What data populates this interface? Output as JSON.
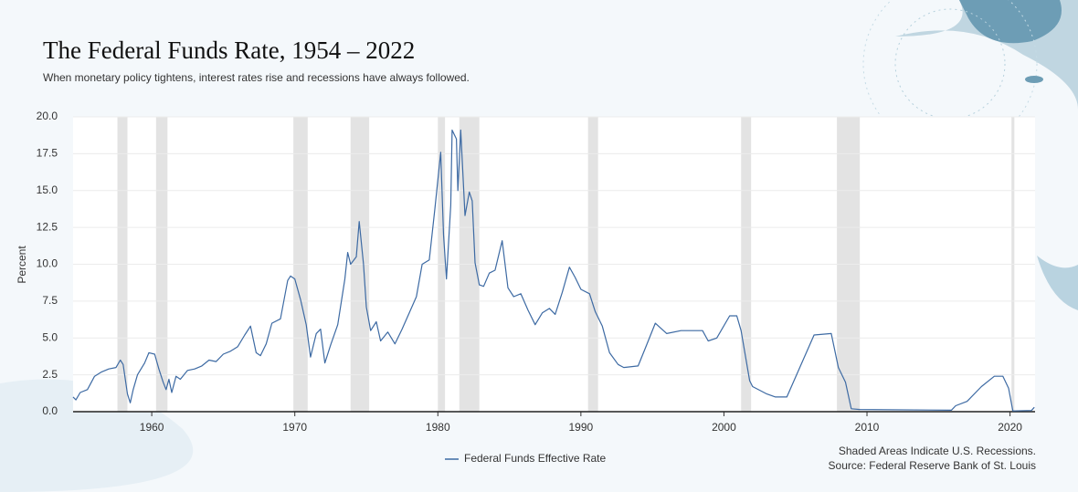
{
  "chart_data": {
    "type": "line",
    "title": "The Federal Funds Rate, 1954 – 2022",
    "subtitle": "When monetary policy tightens, interest rates rise and recessions have always followed.",
    "ylabel": "Percent",
    "xlim": [
      1954.5,
      2021.75
    ],
    "xticks": [
      1960,
      1970,
      1980,
      1990,
      2000,
      2010,
      2020
    ],
    "ylim": [
      0,
      20
    ],
    "yticks": [
      {
        "value": 0,
        "label": "0.0"
      },
      {
        "value": 2.5,
        "label": "2.5"
      },
      {
        "value": 5,
        "label": "5.0"
      },
      {
        "value": 7.5,
        "label": "7.5"
      },
      {
        "value": 10,
        "label": "10.0"
      },
      {
        "value": 12.5,
        "label": "12.5"
      },
      {
        "value": 15,
        "label": "15.0"
      },
      {
        "value": 17.5,
        "label": "17.5"
      },
      {
        "value": 20,
        "label": "20.0"
      }
    ],
    "grid": true,
    "recessions": [
      [
        1957.6,
        1958.3
      ],
      [
        1960.3,
        1961.1
      ],
      [
        1969.9,
        1970.9
      ],
      [
        1973.9,
        1975.2
      ],
      [
        1980.0,
        1980.5
      ],
      [
        1981.5,
        1982.9
      ],
      [
        1990.5,
        1991.2
      ],
      [
        2001.2,
        2001.9
      ],
      [
        2007.9,
        2009.5
      ],
      [
        2020.1,
        2020.3
      ]
    ],
    "recession_color": "#e3e3e3",
    "series": [
      {
        "name": "Federal Funds Effective Rate",
        "color": "#3d6aa3",
        "x": [
          1954.5,
          1954.7,
          1955.0,
          1955.5,
          1956.0,
          1956.5,
          1957.0,
          1957.5,
          1957.8,
          1958.0,
          1958.3,
          1958.5,
          1958.7,
          1959.0,
          1959.5,
          1959.8,
          1960.2,
          1960.5,
          1960.8,
          1961.0,
          1961.2,
          1961.4,
          1961.7,
          1962.0,
          1962.5,
          1963.0,
          1963.5,
          1964.0,
          1964.5,
          1965.0,
          1965.5,
          1966.0,
          1966.5,
          1966.9,
          1967.3,
          1967.6,
          1968.0,
          1968.4,
          1969.0,
          1969.5,
          1969.7,
          1970.0,
          1970.4,
          1970.8,
          1971.1,
          1971.5,
          1971.8,
          1972.1,
          1972.5,
          1973.0,
          1973.5,
          1973.7,
          1973.9,
          1974.3,
          1974.5,
          1974.8,
          1975.0,
          1975.3,
          1975.7,
          1976.0,
          1976.5,
          1977.0,
          1977.5,
          1978.0,
          1978.5,
          1978.9,
          1979.4,
          1979.8,
          1980.2,
          1980.4,
          1980.6,
          1980.9,
          1981.0,
          1981.3,
          1981.4,
          1981.6,
          1981.9,
          1982.2,
          1982.4,
          1982.6,
          1982.9,
          1983.2,
          1983.6,
          1984.0,
          1984.5,
          1984.9,
          1985.3,
          1985.8,
          1986.3,
          1986.8,
          1987.3,
          1987.8,
          1988.2,
          1988.7,
          1989.2,
          1989.6,
          1990.0,
          1990.6,
          1991.0,
          1991.5,
          1992.0,
          1992.6,
          1993.0,
          1994.0,
          1994.5,
          1995.2,
          1996.0,
          1997.0,
          1998.5,
          1998.9,
          1999.5,
          2000.4,
          2000.9,
          2001.2,
          2001.8,
          2002.0,
          2003.0,
          2003.6,
          2004.4,
          2006.3,
          2007.5,
          2008.0,
          2008.5,
          2008.9,
          2009.5,
          2015.9,
          2016.2,
          2017.0,
          2018.0,
          2018.9,
          2019.5,
          2019.9,
          2020.2,
          2021.5,
          2021.7
        ],
        "values": [
          1.0,
          0.8,
          1.3,
          1.5,
          2.4,
          2.7,
          2.9,
          3.0,
          3.5,
          3.2,
          1.2,
          0.6,
          1.5,
          2.5,
          3.3,
          4.0,
          3.9,
          2.9,
          2.0,
          1.5,
          2.2,
          1.3,
          2.4,
          2.2,
          2.8,
          2.9,
          3.1,
          3.5,
          3.4,
          3.9,
          4.1,
          4.4,
          5.2,
          5.8,
          4.0,
          3.8,
          4.6,
          6.0,
          6.3,
          8.9,
          9.2,
          9.0,
          7.6,
          5.9,
          3.7,
          5.3,
          5.6,
          3.3,
          4.5,
          5.9,
          9.0,
          10.8,
          10.0,
          10.5,
          12.9,
          10.0,
          7.1,
          5.5,
          6.1,
          4.8,
          5.4,
          4.6,
          5.6,
          6.7,
          7.8,
          10.0,
          10.3,
          13.8,
          17.6,
          12.0,
          9.0,
          14.0,
          19.1,
          18.5,
          15.0,
          19.1,
          13.3,
          14.9,
          14.3,
          10.1,
          8.6,
          8.5,
          9.4,
          9.6,
          11.6,
          8.4,
          7.8,
          8.0,
          6.9,
          5.9,
          6.7,
          7.0,
          6.6,
          8.1,
          9.8,
          9.1,
          8.3,
          8.0,
          6.8,
          5.8,
          4.0,
          3.2,
          3.0,
          3.1,
          4.3,
          6.0,
          5.3,
          5.5,
          5.5,
          4.8,
          5.0,
          6.5,
          6.5,
          5.5,
          2.1,
          1.7,
          1.2,
          1.0,
          1.0,
          5.2,
          5.3,
          3.0,
          2.0,
          0.2,
          0.15,
          0.1,
          0.4,
          0.7,
          1.7,
          2.4,
          2.4,
          1.6,
          0.05,
          0.08,
          0.3
        ]
      }
    ],
    "notes": [
      "Shaded Areas Indicate U.S. Recessions.",
      "Source: Federal Reserve Bank of St. Louis"
    ]
  }
}
